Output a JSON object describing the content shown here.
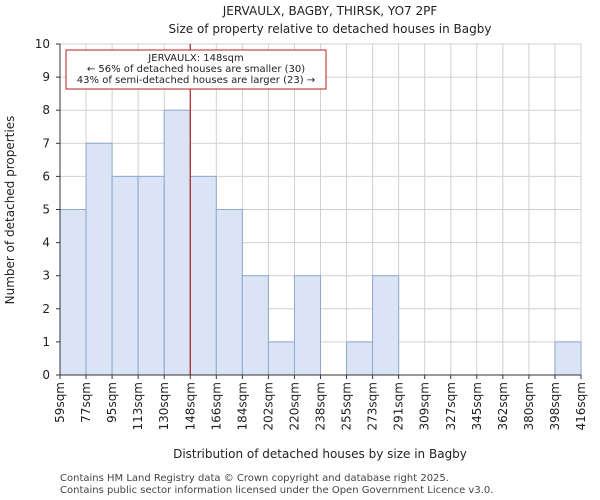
{
  "chart_data": {
    "type": "bar",
    "title_lines": [
      "JERVAULX, BAGBY, THIRSK, YO7 2PF",
      "Size of property relative to detached houses in Bagby"
    ],
    "xlabel": "Distribution of detached houses by size in Bagby",
    "ylabel": "Number of detached properties",
    "bin_edges": [
      59,
      77,
      95,
      113,
      130,
      148,
      166,
      184,
      202,
      220,
      238,
      255,
      273,
      291,
      309,
      327,
      345,
      362,
      380,
      398,
      416
    ],
    "tick_labels": [
      "59sqm",
      "77sqm",
      "95sqm",
      "113sqm",
      "130sqm",
      "148sqm",
      "166sqm",
      "184sqm",
      "202sqm",
      "220sqm",
      "238sqm",
      "255sqm",
      "273sqm",
      "291sqm",
      "309sqm",
      "327sqm",
      "345sqm",
      "362sqm",
      "380sqm",
      "398sqm",
      "416sqm"
    ],
    "values": [
      5,
      7,
      6,
      6,
      8,
      6,
      5,
      3,
      1,
      3,
      0,
      1,
      3,
      0,
      0,
      0,
      0,
      0,
      0,
      1
    ],
    "ylim": [
      0,
      10
    ],
    "yticks": [
      0,
      1,
      2,
      3,
      4,
      5,
      6,
      7,
      8,
      9,
      10
    ],
    "grid": true,
    "colors": {
      "bar_fill": "#dae4f4",
      "bar_stroke": "#8ea8cf",
      "marker": "#b22222",
      "grid": "#d0d0d0",
      "axis": "#333333"
    },
    "marker": {
      "value": 148
    },
    "annotation": {
      "lines": [
        "JERVAULX: 148sqm",
        "← 56% of detached houses are smaller (30)",
        "43% of semi-detached houses are larger (23) →"
      ]
    }
  },
  "footer": {
    "line1": "Contains HM Land Registry data © Crown copyright and database right 2025.",
    "line2": "Contains public sector information licensed under the Open Government Licence v3.0."
  }
}
